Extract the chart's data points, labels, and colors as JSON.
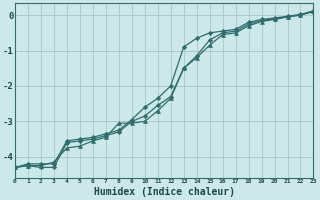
{
  "xlabel": "Humidex (Indice chaleur)",
  "bg_color": "#cce8e8",
  "grid_color": "#aacccc",
  "line_color": "#2e6e6e",
  "xmin": 0,
  "xmax": 23,
  "ymin": -4.6,
  "ymax": 0.35,
  "yticks": [
    0,
    -1,
    -2,
    -3,
    -4
  ],
  "xtick_labels": [
    "0",
    "1",
    "2",
    "3",
    "4",
    "5",
    "6",
    "7",
    "8",
    "9",
    "10",
    "11",
    "12",
    "13",
    "14",
    "15",
    "16",
    "17",
    "18",
    "19",
    "20",
    "21",
    "22",
    "23"
  ],
  "line1_x": [
    0,
    1,
    2,
    3,
    4,
    5,
    6,
    7,
    8,
    9,
    10,
    11,
    12,
    13,
    14,
    15,
    16,
    17,
    18,
    19,
    20,
    21,
    22,
    23
  ],
  "line1_y": [
    -4.3,
    -4.25,
    -4.3,
    -4.3,
    -3.6,
    -3.55,
    -3.5,
    -3.4,
    -3.3,
    -3.0,
    -2.85,
    -2.55,
    -2.3,
    -1.5,
    -1.15,
    -0.7,
    -0.5,
    -0.45,
    -0.25,
    -0.15,
    -0.1,
    -0.05,
    0.0,
    0.1
  ],
  "line2_x": [
    0,
    1,
    2,
    3,
    4,
    5,
    6,
    7,
    8,
    9,
    10,
    11,
    12,
    13,
    14,
    15,
    16,
    17,
    18,
    19,
    20,
    21,
    22,
    23
  ],
  "line2_y": [
    -4.3,
    -4.2,
    -4.2,
    -4.2,
    -3.55,
    -3.5,
    -3.45,
    -3.35,
    -3.25,
    -2.95,
    -2.6,
    -2.35,
    -2.0,
    -0.9,
    -0.65,
    -0.5,
    -0.45,
    -0.4,
    -0.2,
    -0.12,
    -0.08,
    -0.03,
    0.02,
    0.12
  ],
  "line3_x": [
    0,
    1,
    2,
    3,
    4,
    5,
    6,
    7,
    8,
    9,
    10,
    11,
    12,
    13,
    14,
    15,
    16,
    17,
    18,
    19,
    20,
    21,
    22,
    23
  ],
  "line3_y": [
    -4.3,
    -4.25,
    -4.25,
    -4.15,
    -3.75,
    -3.7,
    -3.55,
    -3.45,
    -3.05,
    -3.05,
    -3.0,
    -2.7,
    -2.35,
    -1.5,
    -1.2,
    -0.85,
    -0.55,
    -0.5,
    -0.3,
    -0.18,
    -0.12,
    -0.05,
    0.01,
    0.12
  ],
  "marker1": "D",
  "marker2": "D",
  "marker3": "^"
}
